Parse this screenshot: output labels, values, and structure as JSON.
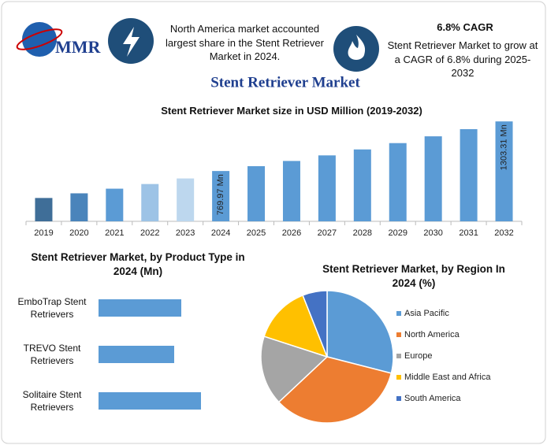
{
  "header": {
    "logo": "MMR",
    "highlight_1": "North America market accounted largest share in the Stent Retriever Market in 2024.",
    "highlight_2_title": "6.8% CAGR",
    "highlight_2": "Stent Retriever Market to grow at a CAGR of 6.8% during 2025-2032",
    "title": "Stent Retriever Market"
  },
  "chart_data": [
    {
      "type": "bar",
      "title": "Stent Retriever Market size in USD Million (2019-2032)",
      "categories": [
        "2019",
        "2020",
        "2021",
        "2022",
        "2023",
        "2024",
        "2025",
        "2026",
        "2027",
        "2028",
        "2029",
        "2030",
        "2031",
        "2032"
      ],
      "values": [
        480,
        530,
        580,
        630,
        690,
        769.97,
        822,
        878,
        938,
        1002,
        1070,
        1143,
        1220,
        1303.31
      ],
      "value_labels": [
        null,
        null,
        null,
        null,
        null,
        "769.97 Mn",
        null,
        null,
        null,
        null,
        null,
        null,
        null,
        "1303.31 Mn"
      ],
      "colors": [
        "#3f6e98",
        "#4a84bb",
        "#5b9bd5",
        "#9dc3e6",
        "#bdd7ee",
        "#5b9bd5",
        "#5b9bd5",
        "#5b9bd5",
        "#5b9bd5",
        "#5b9bd5",
        "#5b9bd5",
        "#5b9bd5",
        "#5b9bd5",
        "#5b9bd5"
      ],
      "ylim": [
        229,
        1330
      ]
    },
    {
      "type": "hbar",
      "title": "Stent Retriever Market, by Product Type in 2024 (Mn)",
      "categories": [
        "EmboTrap Stent Retrievers",
        "TREVO Stent Retrievers",
        "Solitaire Stent Retrievers"
      ],
      "values": [
        105,
        96,
        130
      ],
      "color": "#5b9bd5",
      "xlim": [
        0,
        170
      ]
    },
    {
      "type": "pie",
      "title": "Stent Retriever Market, by Region In 2024 (%)",
      "categories": [
        "Asia Pacific",
        "North America",
        "Europe",
        "Middle East and Africa",
        "South America"
      ],
      "values": [
        29,
        34,
        17,
        14,
        6
      ],
      "colors": [
        "#5b9bd5",
        "#ed7d31",
        "#a5a5a5",
        "#ffc000",
        "#4472c4"
      ]
    }
  ]
}
